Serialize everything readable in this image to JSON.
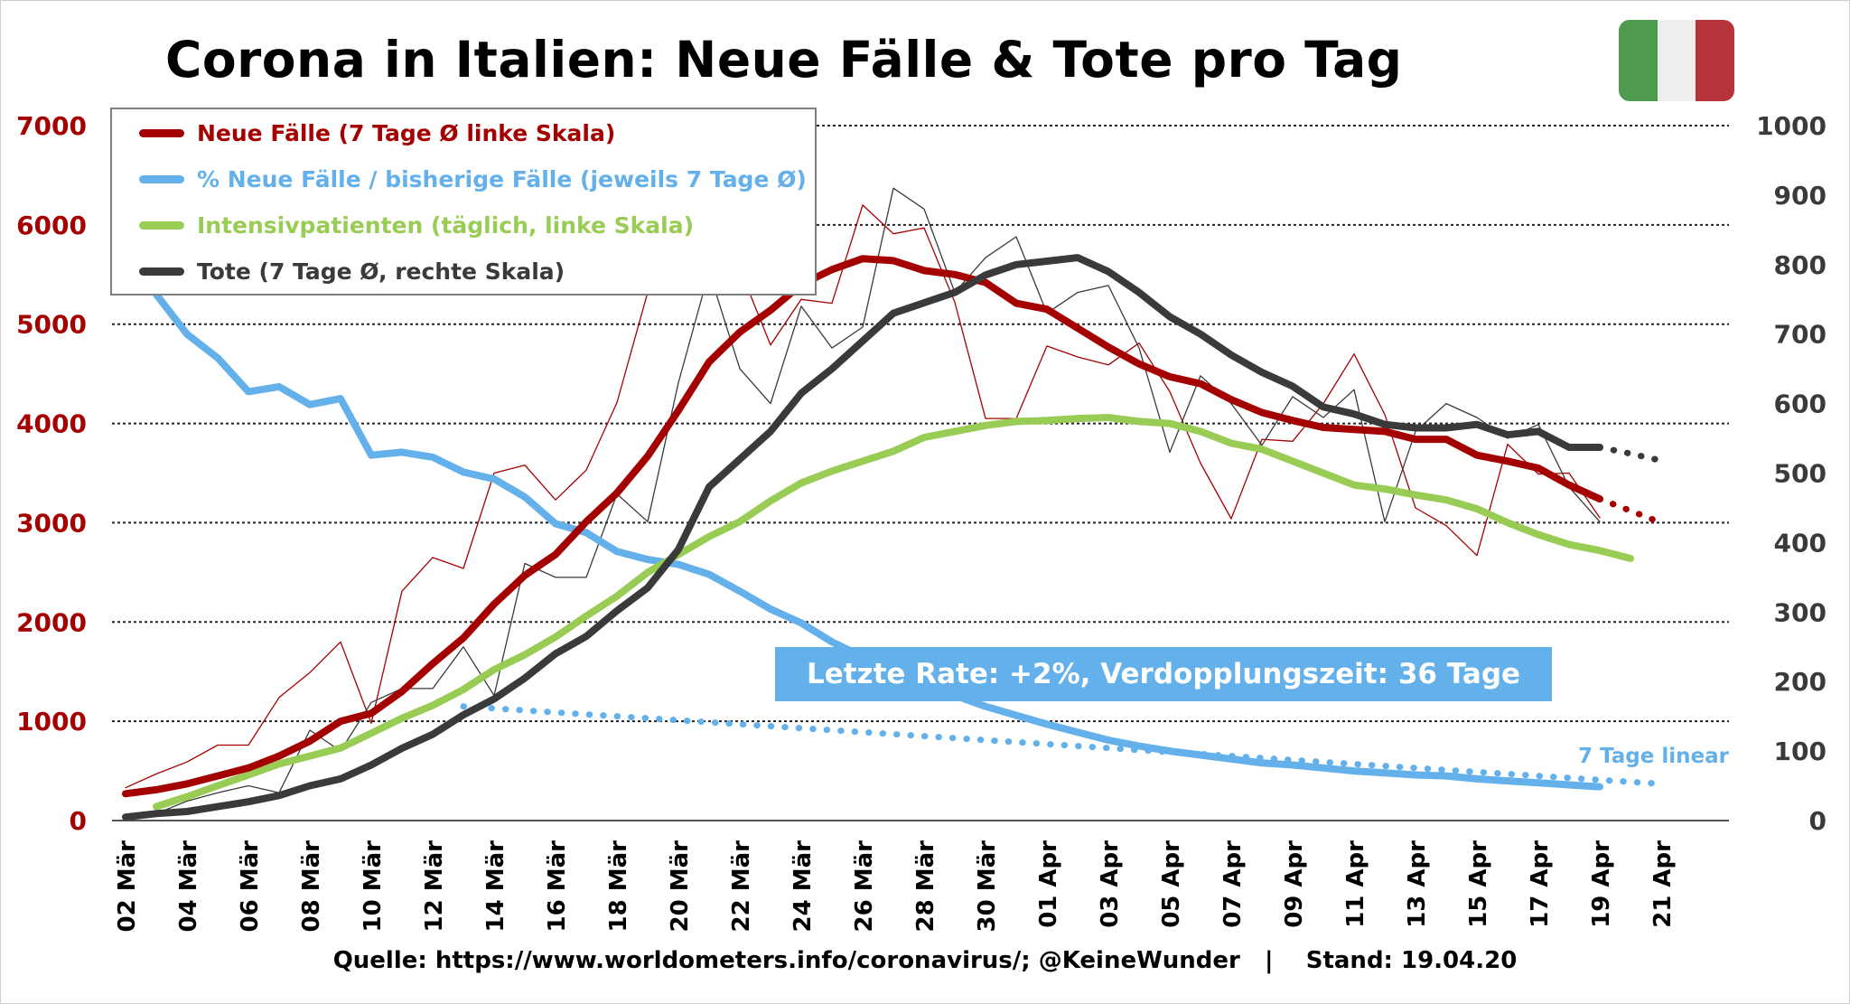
{
  "title": "Corona in Italien: Neue Fälle & Tote pro Tag",
  "flag": {
    "colors": [
      "#4e9a4f",
      "#eeeeee",
      "#b7333a"
    ]
  },
  "source": "Quelle: https://www.worldometers.info/coronavirus/; @KeineWunder   |    Stand: 19.04.20",
  "callout": "Letzte Rate: +2%, Verdopplungszeit: 36 Tage",
  "projection_label": "7 Tage linear",
  "colors": {
    "cases": "#a50000",
    "percent": "#63b0ea",
    "icu": "#99cc55",
    "deaths": "#3a3a3a",
    "left_axis": "#a50000",
    "right_axis": "#3a3a3a"
  },
  "legend": [
    {
      "label": "Neue Fälle (7 Tage Ø linke Skala)",
      "color": "#a50000"
    },
    {
      "label": "% Neue Fälle / bisherige Fälle (jeweils 7 Tage Ø)",
      "color": "#63b0ea"
    },
    {
      "label": "Intensivpatienten (täglich, linke Skala)",
      "color": "#99cc55"
    },
    {
      "label": "Tote (7 Tage Ø, rechte Skala)",
      "color": "#3a3a3a"
    }
  ],
  "chart_data": {
    "type": "line",
    "title": "Corona in Italien: Neue Fälle & Tote pro Tag",
    "x_dates": [
      "02 Mär",
      "03 Mär",
      "04 Mär",
      "05 Mär",
      "06 Mär",
      "07 Mär",
      "08 Mär",
      "09 Mär",
      "10 Mär",
      "11 Mär",
      "12 Mär",
      "13 Mär",
      "14 Mär",
      "15 Mär",
      "16 Mär",
      "17 Mär",
      "18 Mär",
      "19 Mär",
      "20 Mär",
      "21 Mär",
      "22 Mär",
      "23 Mär",
      "24 Mär",
      "25 Mär",
      "26 Mär",
      "27 Mär",
      "28 Mär",
      "29 Mär",
      "30 Mär",
      "31 Mär",
      "01 Apr",
      "02 Apr",
      "03 Apr",
      "04 Apr",
      "05 Apr",
      "06 Apr",
      "07 Apr",
      "08 Apr",
      "09 Apr",
      "10 Apr",
      "11 Apr",
      "12 Apr",
      "13 Apr",
      "14 Apr",
      "15 Apr",
      "16 Apr",
      "17 Apr",
      "18 Apr",
      "19 Apr",
      "20 Apr",
      "21 Apr"
    ],
    "x_tick_labels": [
      "02 Mär",
      "04 Mär",
      "06 Mär",
      "08 Mär",
      "10 Mär",
      "12 Mär",
      "14 Mär",
      "16 Mär",
      "18 Mär",
      "20 Mär",
      "22 Mär",
      "24 Mär",
      "26 Mär",
      "28 Mär",
      "30 Mär",
      "01 Apr",
      "03 Apr",
      "05 Apr",
      "07 Apr",
      "09 Apr",
      "11 Apr",
      "13 Apr",
      "15 Apr",
      "17 Apr",
      "19 Apr",
      "21 Apr"
    ],
    "y_left": {
      "ylim": [
        0,
        7000
      ],
      "ticks": [
        0,
        1000,
        2000,
        3000,
        4000,
        5000,
        6000,
        7000
      ]
    },
    "y_right": {
      "ylim": [
        0,
        1000
      ],
      "ticks": [
        0,
        100,
        200,
        300,
        400,
        500,
        600,
        700,
        800,
        900,
        1000
      ]
    },
    "grid": "horizontal dotted",
    "legend_position": "top-left",
    "series": [
      {
        "name": "Neue Fälle (7 Tage Ø linke Skala)",
        "axis": "left",
        "style": "thick",
        "values": [
          270,
          310,
          370,
          450,
          530,
          650,
          800,
          1000,
          1080,
          1300,
          1580,
          1840,
          2180,
          2470,
          2680,
          3010,
          3300,
          3670,
          4130,
          4620,
          4920,
          5140,
          5400,
          5550,
          5660,
          5640,
          5540,
          5500,
          5420,
          5210,
          5150,
          4960,
          4770,
          4600,
          4470,
          4400,
          4240,
          4110,
          4030,
          3960,
          3940,
          3920,
          3840,
          3840,
          3680,
          3620,
          3550,
          3380,
          3240
        ]
      },
      {
        "name": "Neue Fälle täglich",
        "axis": "left",
        "style": "thin",
        "values": [
          330,
          470,
          590,
          760,
          760,
          1240,
          1490,
          1800,
          980,
          2310,
          2650,
          2540,
          3500,
          3580,
          3230,
          3530,
          4210,
          5320,
          5990,
          6570,
          5560,
          4790,
          5250,
          5210,
          6200,
          5910,
          5970,
          5220,
          4050,
          4050,
          4780,
          4670,
          4590,
          4810,
          4320,
          3600,
          3040,
          3840,
          3820,
          4200,
          4700,
          4090,
          3150,
          2970,
          2670,
          3790,
          3490,
          3500,
          3050
        ]
      },
      {
        "name": "Neue Fälle Projektion",
        "axis": "left",
        "style": "dotted",
        "x_start": "19 Apr",
        "values": [
          3240,
          3120,
          3000
        ]
      },
      {
        "name": "% Neue Fälle / bisherige Fälle (jeweils 7 Tage Ø)",
        "axis": "left_scaled",
        "style": "thick",
        "values": [
          5600,
          5300,
          4900,
          4660,
          4320,
          4370,
          4190,
          4250,
          3680,
          3710,
          3660,
          3510,
          3440,
          3260,
          2990,
          2900,
          2710,
          2630,
          2580,
          2480,
          2310,
          2130,
          1990,
          1800,
          1650,
          1500,
          1380,
          1260,
          1150,
          1060,
          970,
          890,
          810,
          750,
          700,
          660,
          620,
          580,
          560,
          530,
          500,
          480,
          460,
          450,
          420,
          400,
          380,
          360,
          340
        ]
      },
      {
        "name": "% Neue Fälle Projektion",
        "axis": "left_scaled",
        "style": "dotted",
        "x_start": "13 Mär",
        "values": [
          1150,
          1130,
          1110,
          1090,
          1070,
          1050,
          1030,
          1010,
          990,
          970,
          950,
          930,
          910,
          890,
          870,
          850,
          830,
          810,
          790,
          770,
          750,
          730,
          710,
          690,
          670,
          650,
          630,
          610,
          590,
          570,
          550,
          530,
          510,
          490,
          470,
          450,
          430,
          410,
          390,
          370
        ]
      },
      {
        "name": "Intensivpatienten (täglich, linke Skala)",
        "axis": "left",
        "style": "thick",
        "x_start": "03 Mär",
        "values": [
          140,
          240,
          350,
          460,
          570,
          650,
          730,
          880,
          1030,
          1160,
          1320,
          1520,
          1670,
          1850,
          2060,
          2260,
          2500,
          2680,
          2860,
          3010,
          3220,
          3400,
          3520,
          3620,
          3720,
          3860,
          3920,
          3980,
          4020,
          4030,
          4050,
          4060,
          4020,
          4000,
          3920,
          3800,
          3740,
          3620,
          3500,
          3380,
          3340,
          3280,
          3230,
          3140,
          3000,
          2880,
          2780,
          2720,
          2640
        ]
      },
      {
        "name": "Tote (7 Tage Ø, rechte Skala)",
        "axis": "right",
        "style": "thick",
        "values": [
          5,
          10,
          13,
          20,
          27,
          36,
          50,
          60,
          80,
          104,
          124,
          152,
          175,
          205,
          240,
          265,
          302,
          335,
          390,
          480,
          520,
          560,
          615,
          650,
          690,
          730,
          745,
          760,
          785,
          800,
          805,
          810,
          790,
          760,
          725,
          700,
          670,
          645,
          625,
          595,
          585,
          570,
          565,
          565,
          570,
          555,
          560,
          537,
          537
        ]
      },
      {
        "name": "Tote täglich",
        "axis": "right",
        "style": "thin",
        "values": [
          5,
          10,
          28,
          40,
          50,
          40,
          130,
          100,
          170,
          190,
          190,
          250,
          180,
          370,
          350,
          350,
          470,
          430,
          630,
          790,
          650,
          600,
          740,
          680,
          710,
          910,
          880,
          760,
          810,
          840,
          730,
          760,
          770,
          680,
          530,
          640,
          600,
          540,
          610,
          580,
          620,
          430,
          560,
          600,
          580,
          550,
          570,
          480,
          430
        ]
      },
      {
        "name": "Tote Projektion",
        "axis": "right",
        "style": "dotted",
        "x_start": "19 Apr",
        "values": [
          537,
          528,
          518
        ]
      }
    ]
  }
}
